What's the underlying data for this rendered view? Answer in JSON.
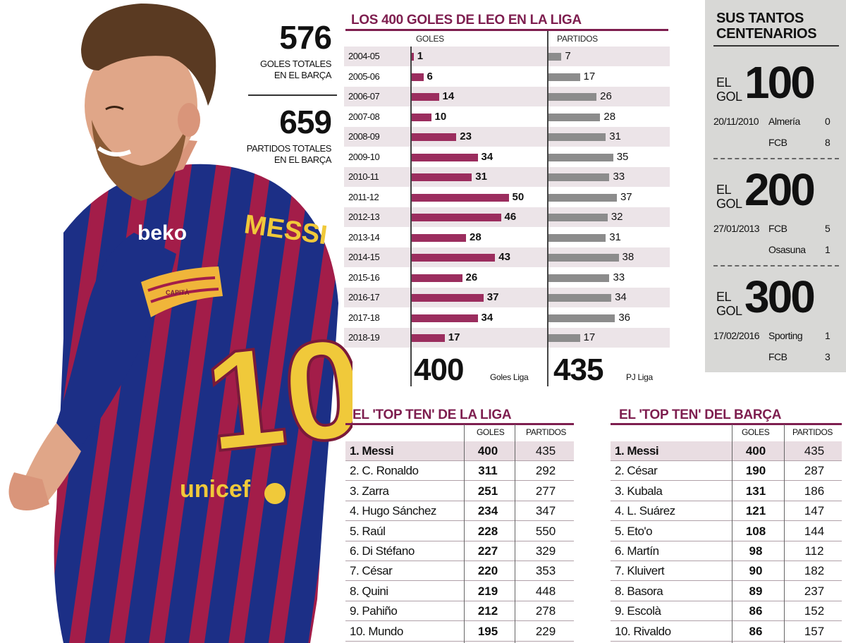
{
  "totals": {
    "goals": "576",
    "goals_label_1": "GOLES TOTALES",
    "goals_label_2": "EN EL BARÇA",
    "matches": "659",
    "matches_label_1": "PARTIDOS TOTALES",
    "matches_label_2": "EN EL BARÇA"
  },
  "jersey": {
    "sponsor": "beko",
    "name": "MESSI",
    "number": "10",
    "captain": "CAPITÀ",
    "partner": "unicef"
  },
  "chart_data": {
    "type": "bar",
    "title": "LOS 400 GOLES DE LEO EN LA LIGA",
    "categories": [
      "2004-05",
      "2005-06",
      "2006-07",
      "2007-08",
      "2008-09",
      "2009-10",
      "2010-11",
      "2011-12",
      "2012-13",
      "2013-14",
      "2014-15",
      "2015-16",
      "2016-17",
      "2017-18",
      "2018-19"
    ],
    "series": [
      {
        "name": "GOLES",
        "values": [
          1,
          6,
          14,
          10,
          23,
          34,
          31,
          50,
          46,
          28,
          43,
          26,
          37,
          34,
          17
        ],
        "color": "#9b2d5e"
      },
      {
        "name": "PARTIDOS",
        "values": [
          7,
          17,
          26,
          28,
          31,
          35,
          33,
          37,
          32,
          31,
          38,
          33,
          34,
          36,
          17
        ],
        "color": "#8c8c8c"
      }
    ],
    "totals": {
      "goals": "400",
      "goals_label": "Goles Liga",
      "matches": "435",
      "matches_label": "PJ Liga"
    }
  },
  "centenarios": {
    "title_1": "SUS TANTOS",
    "title_2": "CENTENARIOS",
    "el": "EL",
    "gol": "GOL",
    "items": [
      {
        "number": "100",
        "date": "20/11/2010",
        "team1": "Almería",
        "score1": "0",
        "team2": "FCB",
        "score2": "8"
      },
      {
        "number": "200",
        "date": "27/01/2013",
        "team1": "FCB",
        "score1": "5",
        "team2": "Osasuna",
        "score2": "1"
      },
      {
        "number": "300",
        "date": "17/02/2016",
        "team1": "Sporting",
        "score1": "1",
        "team2": "FCB",
        "score2": "3"
      }
    ]
  },
  "top_liga": {
    "title": "EL 'TOP TEN' DE LA LIGA",
    "col_goals": "GOLES",
    "col_matches": "PARTIDOS",
    "rows": [
      {
        "name": "1. Messi",
        "goals": "400",
        "matches": "435"
      },
      {
        "name": "2. C. Ronaldo",
        "goals": "311",
        "matches": "292"
      },
      {
        "name": "3. Zarra",
        "goals": "251",
        "matches": "277"
      },
      {
        "name": "4. Hugo Sánchez",
        "goals": "234",
        "matches": "347"
      },
      {
        "name": "5. Raúl",
        "goals": "228",
        "matches": "550"
      },
      {
        "name": "6. Di Stéfano",
        "goals": "227",
        "matches": "329"
      },
      {
        "name": "7. César",
        "goals": "220",
        "matches": "353"
      },
      {
        "name": "8. Quini",
        "goals": "219",
        "matches": "448"
      },
      {
        "name": "9. Pahiño",
        "goals": "212",
        "matches": "278"
      },
      {
        "name": "10. Mundo",
        "goals": "195",
        "matches": "229"
      }
    ]
  },
  "top_barca": {
    "title": "EL 'TOP TEN' DEL BARÇA",
    "col_goals": "GOLES",
    "col_matches": "PARTIDOS",
    "rows": [
      {
        "name": "1. Messi",
        "goals": "400",
        "matches": "435"
      },
      {
        "name": "2. César",
        "goals": "190",
        "matches": "287"
      },
      {
        "name": "3. Kubala",
        "goals": "131",
        "matches": "186"
      },
      {
        "name": "4. L. Suárez",
        "goals": "121",
        "matches": "147"
      },
      {
        "name": "5. Eto'o",
        "goals": "108",
        "matches": "144"
      },
      {
        "name": "6. Martín",
        "goals": "98",
        "matches": "112"
      },
      {
        "name": "7. Kluivert",
        "goals": "90",
        "matches": "182"
      },
      {
        "name": "8. Basora",
        "goals": "89",
        "matches": "237"
      },
      {
        "name": "9. Escolà",
        "goals": "86",
        "matches": "152"
      },
      {
        "name": "10. Rivaldo",
        "goals": "86",
        "matches": "157"
      }
    ]
  }
}
